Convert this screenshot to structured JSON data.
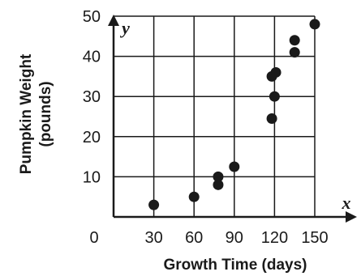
{
  "chart_data": {
    "type": "scatter",
    "title": "",
    "xlabel": "Growth Time (days)",
    "ylabel_line1": "Pumpkin Weight",
    "ylabel_line2": "(pounds)",
    "x_axis_var": "x",
    "y_axis_var": "y",
    "origin_label": "0",
    "xlim": [
      0,
      150
    ],
    "ylim": [
      0,
      50
    ],
    "x_ticks": [
      30,
      60,
      90,
      120,
      150
    ],
    "x_tick_labels": [
      "30",
      "60",
      "90",
      "120",
      "150"
    ],
    "y_ticks": [
      10,
      20,
      30,
      40,
      50
    ],
    "y_tick_labels": [
      "10",
      "20",
      "30",
      "40",
      "50"
    ],
    "grid": true,
    "points": [
      {
        "x": 30,
        "y": 3
      },
      {
        "x": 60,
        "y": 5
      },
      {
        "x": 78,
        "y": 8
      },
      {
        "x": 78,
        "y": 10
      },
      {
        "x": 90,
        "y": 12.5
      },
      {
        "x": 118,
        "y": 24.5
      },
      {
        "x": 118,
        "y": 35
      },
      {
        "x": 120,
        "y": 30
      },
      {
        "x": 121,
        "y": 36
      },
      {
        "x": 135,
        "y": 41
      },
      {
        "x": 135,
        "y": 44
      },
      {
        "x": 150,
        "y": 48
      }
    ],
    "colors": {
      "marker": "#1a1a1a",
      "grid": "#1a1a1a",
      "axis": "#1a1a1a"
    }
  }
}
